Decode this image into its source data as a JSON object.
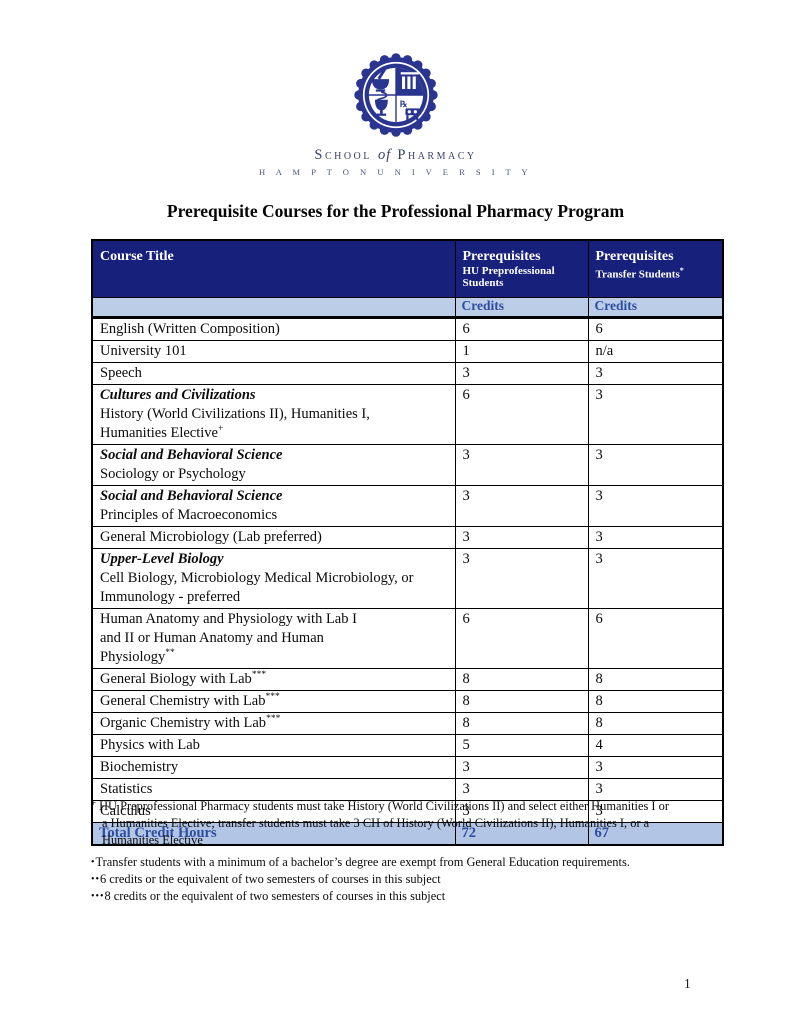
{
  "logo": {
    "school_pre": "School",
    "school_of": "of",
    "school_post": "Pharmacy",
    "university": "H A M P T O N   U N I V E R S I T Y"
  },
  "title": "Prerequisite Courses for the Professional Pharmacy Program",
  "colors": {
    "header_bg": "#17217c",
    "header_text": "#ffffff",
    "subheader_bg": "#bccde8",
    "total_bg": "#b2c5e4",
    "accent_text": "#2e4da0",
    "logo_navy": "#2a3590"
  },
  "table": {
    "header": {
      "col1": "Course Title",
      "col2_line1": "Prerequisites",
      "col2_line2": "HU Preprofessional Students",
      "col3_line1": "Prerequisites",
      "col3_line2": "Transfer Students",
      "col3_sup": "*",
      "credits_label_hu": "Credits",
      "credits_label_transfer": "Credits"
    },
    "rows": [
      {
        "lines": [
          {
            "text": "English (Written Composition)"
          }
        ],
        "hu": "6",
        "transfer": "6"
      },
      {
        "lines": [
          {
            "text": "University 101"
          }
        ],
        "hu": "1",
        "transfer": "n/a"
      },
      {
        "lines": [
          {
            "text": "Speech"
          }
        ],
        "hu": "3",
        "transfer": "3"
      },
      {
        "lines": [
          {
            "text": "Cultures and Civilizations",
            "italic": true
          },
          {
            "text": "History (World Civilizations II), Humanities I,"
          },
          {
            "text": "Humanities Elective",
            "sup": "+"
          }
        ],
        "hu": "6",
        "transfer": "3"
      },
      {
        "lines": [
          {
            "text": "Social and Behavioral Science",
            "italic": true
          },
          {
            "text": "Sociology or Psychology"
          }
        ],
        "hu": "3",
        "transfer": "3"
      },
      {
        "lines": [
          {
            "text": "Social and Behavioral Science",
            "italic": true
          },
          {
            "text": "Principles of Macroeconomics"
          }
        ],
        "hu": "3",
        "transfer": "3"
      },
      {
        "lines": [
          {
            "text": "General Microbiology (Lab preferred)"
          }
        ],
        "hu": "3",
        "transfer": "3"
      },
      {
        "lines": [
          {
            "text": "Upper-Level Biology",
            "italic": true
          },
          {
            "text": "Cell Biology, Microbiology Medical Microbiology, or"
          },
          {
            "text": "Immunology -  preferred"
          }
        ],
        "hu": "3",
        "transfer": "3"
      },
      {
        "lines": [
          {
            "text": "Human Anatomy and Physiology with Lab I"
          },
          {
            "text": "and II or Human  Anatomy and Human"
          },
          {
            "text": "Physiology",
            "sup": "**"
          }
        ],
        "hu": "6",
        "transfer": "6"
      },
      {
        "lines": [
          {
            "text": "General Biology with Lab",
            "sup": "***"
          }
        ],
        "hu": "8",
        "transfer": "8"
      },
      {
        "lines": [
          {
            "text": "General Chemistry with Lab",
            "sup": "***"
          }
        ],
        "hu": "8",
        "transfer": "8"
      },
      {
        "lines": [
          {
            "text": "Organic Chemistry with Lab",
            "sup": "***"
          }
        ],
        "hu": "8",
        "transfer": "8"
      },
      {
        "lines": [
          {
            "text": "Physics with Lab"
          }
        ],
        "hu": "5",
        "transfer": "4"
      },
      {
        "lines": [
          {
            "text": "Biochemistry"
          }
        ],
        "hu": "3",
        "transfer": "3"
      },
      {
        "lines": [
          {
            "text": "Statistics"
          }
        ],
        "hu": "3",
        "transfer": "3"
      },
      {
        "lines": [
          {
            "text": "Calculus"
          }
        ],
        "hu": "3",
        "transfer": "3"
      }
    ],
    "total": {
      "label": "Total Credit Hours",
      "hu": "72",
      "transfer": "67"
    }
  },
  "footnotes": [
    {
      "marker": "+",
      "space_after_marker": true,
      "lines": [
        "HU Preprofessional Pharmacy students must take History (World Civilizations II) and select either Humanities I or",
        "a Humanities Elective; transfer students must take 3 CH of History (World Civilizations II), Humanities I, or a",
        "Humanities Elective"
      ]
    },
    {
      "marker": "•",
      "space_after_marker": false,
      "lines": [
        "Transfer students with a minimum of a bachelor’s degree are exempt from General Education requirements."
      ]
    },
    {
      "marker": "••",
      "space_after_marker": false,
      "lines": [
        "6 credits or the equivalent of two semesters of courses in this subject"
      ]
    },
    {
      "marker": "•••",
      "space_after_marker": false,
      "lines": [
        "8 credits or the equivalent of two semesters of courses in this subject"
      ]
    }
  ],
  "page_number": "1"
}
